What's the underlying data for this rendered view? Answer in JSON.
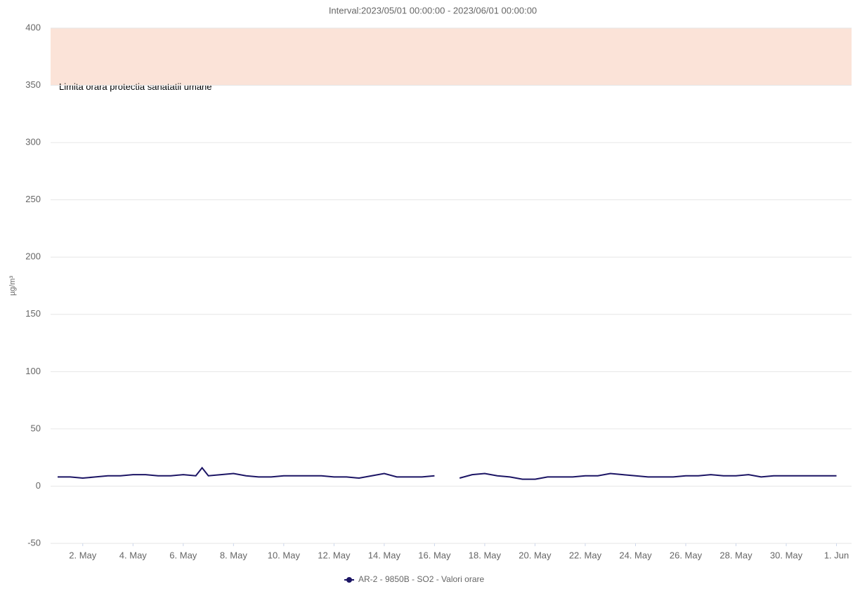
{
  "chart_data": {
    "type": "line",
    "title": "Interval:2023/05/01 00:00:00 - 2023/06/01 00:00:00",
    "y_label": "µg/m³",
    "x": [
      1,
      1.5,
      2,
      2.5,
      3,
      3.5,
      4,
      4.5,
      5,
      5.5,
      6,
      6.5,
      6.75,
      7,
      7.5,
      8,
      8.5,
      9,
      9.5,
      10,
      10.5,
      11,
      11.5,
      12,
      12.5,
      13,
      13.5,
      14,
      14.5,
      15,
      15.5,
      16,
      16.5,
      17,
      17.5,
      18,
      18.5,
      19,
      19.5,
      20,
      20.5,
      21,
      21.5,
      22,
      22.5,
      23,
      23.5,
      24,
      24.5,
      25,
      25.5,
      26,
      26.5,
      27,
      27.5,
      28,
      28.5,
      29,
      29.5,
      30,
      30.5,
      31,
      31.5,
      32
    ],
    "series": [
      {
        "name": "AR-2 - 9850B - SO2 - Valori orare",
        "color": "#1b1464",
        "values": [
          8,
          8,
          7,
          8,
          9,
          9,
          10,
          10,
          9,
          9,
          10,
          9,
          16,
          9,
          10,
          11,
          9,
          8,
          8,
          9,
          9,
          9,
          9,
          8,
          8,
          7,
          9,
          11,
          8,
          8,
          8,
          9,
          null,
          7,
          10,
          11,
          9,
          8,
          6,
          6,
          8,
          8,
          8,
          9,
          9,
          11,
          10,
          9,
          8,
          8,
          8,
          9,
          9,
          10,
          9,
          9,
          10,
          8,
          9,
          9,
          9,
          9,
          9,
          9
        ]
      }
    ],
    "xlim": [
      0.72,
      32.6
    ],
    "xticks": [
      {
        "value": 2,
        "label": "2. May"
      },
      {
        "value": 4,
        "label": "4. May"
      },
      {
        "value": 6,
        "label": "6. May"
      },
      {
        "value": 8,
        "label": "8. May"
      },
      {
        "value": 10,
        "label": "10. May"
      },
      {
        "value": 12,
        "label": "12. May"
      },
      {
        "value": 14,
        "label": "14. May"
      },
      {
        "value": 16,
        "label": "16. May"
      },
      {
        "value": 18,
        "label": "18. May"
      },
      {
        "value": 20,
        "label": "20. May"
      },
      {
        "value": 22,
        "label": "22. May"
      },
      {
        "value": 24,
        "label": "24. May"
      },
      {
        "value": 26,
        "label": "26. May"
      },
      {
        "value": 28,
        "label": "28. May"
      },
      {
        "value": 30,
        "label": "30. May"
      },
      {
        "value": 32,
        "label": "1. Jun"
      }
    ],
    "ylim": [
      -50,
      400
    ],
    "yticks": [
      -50,
      0,
      50,
      100,
      150,
      200,
      250,
      300,
      350,
      400
    ],
    "grid": true,
    "plot_band": {
      "from": 350,
      "to": 400,
      "color": "#fbe3d8",
      "label": "Limita orara protectia sanatatii umane"
    },
    "legend": "bottom"
  }
}
